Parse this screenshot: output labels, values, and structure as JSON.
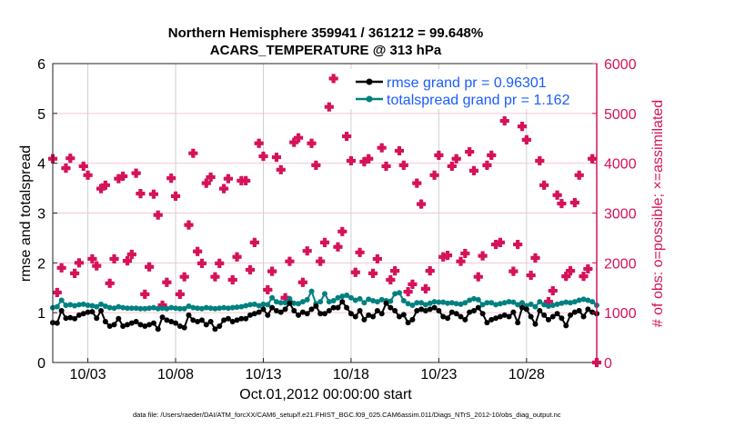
{
  "title_line1": "Northern Hemisphere 359941 / 361212 = 99.648%",
  "title_line2": "ACARS_TEMPERATURE @ 313 hPa",
  "footer": "data file: /Users/raeder/DAI/ATM_forcXX/CAM6_setup/f.e21.FHIST_BGC.f09_025.CAM6assim.011/Diags_NTrS_2012-10/obs_diag_output.nc",
  "colors": {
    "rmse": "#000000",
    "totalspread": "#008080",
    "obs": "#d6125a",
    "legend_text": "#1a5cff",
    "grid_h": "#f2c6d6",
    "grid_v": "#d0d0d0"
  },
  "chart_data": {
    "type": "line",
    "xlabel": "Oct.01,2012 00:00:00 start",
    "ylabel": "rmse and totalspread",
    "ylabel_right": "# of obs: o=possible; ×=assimilated",
    "xlim": [
      "2012-10-01 00:00",
      "2012-11-01 00:00"
    ],
    "ylim": [
      0,
      6
    ],
    "ylim_right": [
      0,
      6000
    ],
    "x_ticks": [
      {
        "date": "2012-10-03",
        "label": "10/03"
      },
      {
        "date": "2012-10-08",
        "label": "10/08"
      },
      {
        "date": "2012-10-13",
        "label": "10/13"
      },
      {
        "date": "2012-10-18",
        "label": "10/18"
      },
      {
        "date": "2012-10-23",
        "label": "10/23"
      },
      {
        "date": "2012-10-28",
        "label": "10/28"
      }
    ],
    "y_ticks": [
      "0",
      "1",
      "2",
      "3",
      "4",
      "5",
      "6"
    ],
    "y_ticks_right": [
      "0",
      "1000",
      "2000",
      "3000",
      "4000",
      "5000",
      "6000"
    ],
    "grid": true,
    "legend_placement": "top-right",
    "x_start": "2012-10-01 00:00",
    "x_step_hours": 6,
    "series": [
      {
        "name": "rmse grand pr = 0.96301",
        "axis": "left",
        "values": [
          0.8,
          0.79,
          1.04,
          0.89,
          0.9,
          0.88,
          0.95,
          0.98,
          1.01,
          1.02,
          0.89,
          1.04,
          0.82,
          0.73,
          0.76,
          0.88,
          0.73,
          0.76,
          0.79,
          0.82,
          0.76,
          0.73,
          0.76,
          0.79,
          0.67,
          0.91,
          0.85,
          0.82,
          0.79,
          0.73,
          0.7,
          0.95,
          0.85,
          0.82,
          0.85,
          0.76,
          0.82,
          0.67,
          0.73,
          0.85,
          0.88,
          0.82,
          0.85,
          0.88,
          0.88,
          0.95,
          0.98,
          1.01,
          1.07,
          0.95,
          1.1,
          1.04,
          1.01,
          1.07,
          1.19,
          1.04,
          0.95,
          1.01,
          0.98,
          1.07,
          1.13,
          0.98,
          0.98,
          1.04,
          1.1,
          1.1,
          1.22,
          1.1,
          0.98,
          0.92,
          1.04,
          0.86,
          0.95,
          0.92,
          1.04,
          0.98,
          1.19,
          1.1,
          1.04,
          0.92,
          0.96,
          0.8,
          0.86,
          1.04,
          1.07,
          1.04,
          1.07,
          1.1,
          1.04,
          0.92,
          0.89,
          1.01,
          0.98,
          0.92,
          0.86,
          1.01,
          1.04,
          1.1,
          0.98,
          0.8,
          0.86,
          0.89,
          0.92,
          0.95,
          0.92,
          1.01,
          0.8,
          1.1,
          1.07,
          0.92,
          0.77,
          1.04,
          0.95,
          0.86,
          0.92,
          0.98,
          0.89,
          0.74,
          0.95,
          1.01,
          1.04,
          0.92,
          1.07,
          1.01,
          0.98
        ]
      },
      {
        "name": "totalspread grand pr = 1.162",
        "axis": "left",
        "values": [
          1.1,
          1.12,
          1.25,
          1.15,
          1.16,
          1.14,
          1.16,
          1.17,
          1.15,
          1.14,
          1.12,
          1.17,
          1.13,
          1.1,
          1.09,
          1.12,
          1.1,
          1.09,
          1.09,
          1.09,
          1.08,
          1.08,
          1.09,
          1.1,
          1.08,
          1.09,
          1.08,
          1.1,
          1.09,
          1.08,
          1.08,
          1.13,
          1.1,
          1.09,
          1.08,
          1.1,
          1.09,
          1.08,
          1.09,
          1.1,
          1.09,
          1.1,
          1.11,
          1.12,
          1.14,
          1.16,
          1.17,
          1.14,
          1.17,
          1.16,
          1.3,
          1.22,
          1.2,
          1.2,
          1.28,
          1.19,
          1.18,
          1.22,
          1.26,
          1.43,
          1.18,
          1.22,
          1.38,
          1.22,
          1.24,
          1.3,
          1.33,
          1.35,
          1.3,
          1.25,
          1.28,
          1.2,
          1.27,
          1.24,
          1.22,
          1.26,
          1.24,
          1.23,
          1.38,
          1.4,
          1.24,
          1.18,
          1.15,
          1.2,
          1.2,
          1.16,
          1.19,
          1.22,
          1.21,
          1.21,
          1.19,
          1.2,
          1.18,
          1.17,
          1.2,
          1.25,
          1.28,
          1.26,
          1.16,
          1.2,
          1.2,
          1.16,
          1.18,
          1.2,
          1.22,
          1.21,
          1.16,
          1.2,
          1.14,
          1.17,
          1.12,
          1.22,
          1.16,
          1.13,
          1.15,
          1.17,
          1.19,
          1.21,
          1.2,
          1.22,
          1.25,
          1.27,
          1.25,
          1.22,
          1.15
        ]
      },
      {
        "axis": "right",
        "marker": "cross",
        "values": [
          4090,
          1405,
          1900,
          3900,
          4100,
          1790,
          2000,
          3940,
          3760,
          2080,
          1940,
          3490,
          3560,
          1590,
          2080,
          3690,
          3740,
          2040,
          2170,
          3800,
          3390,
          1370,
          1920,
          3380,
          2960,
          1150,
          1610,
          3700,
          3340,
          1370,
          1720,
          2760,
          4200,
          2230,
          1990,
          3600,
          3720,
          1720,
          1990,
          3490,
          3690,
          1660,
          2120,
          3650,
          3650,
          1860,
          2410,
          4400,
          4140,
          1460,
          1830,
          4120,
          3870,
          1300,
          2030,
          4420,
          4510,
          1610,
          2240,
          4400,
          3960,
          2030,
          2410,
          5130,
          5700,
          2320,
          2630,
          4540,
          4050,
          1810,
          2210,
          4030,
          4090,
          1790,
          2080,
          4310,
          3940,
          1660,
          1840,
          4250,
          3960,
          1420,
          1570,
          3600,
          3180,
          1480,
          1840,
          3760,
          4160,
          2120,
          2150,
          3940,
          4090,
          2030,
          2190,
          4230,
          3850,
          1720,
          2140,
          3960,
          4160,
          2370,
          2410,
          4850,
          5220,
          1830,
          2370,
          4740,
          4470,
          1750,
          2100,
          4050,
          3560,
          1220,
          1440,
          3360,
          3190,
          1730,
          1840,
          3210,
          3760,
          1730,
          1880,
          4090,
          0
        ]
      }
    ]
  }
}
